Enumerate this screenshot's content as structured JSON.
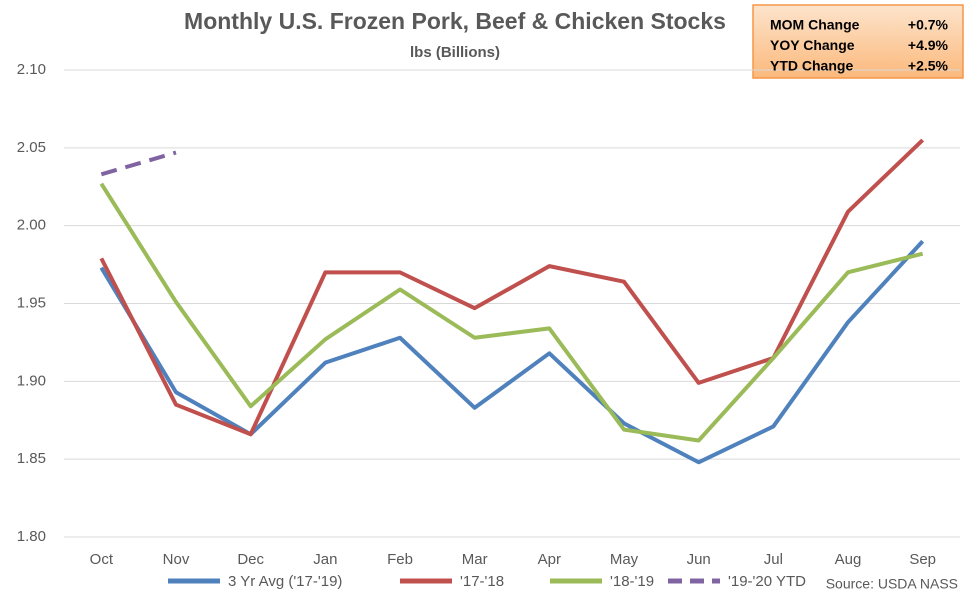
{
  "chart_data": {
    "type": "line",
    "title": "Monthly U.S. Frozen Pork, Beef & Chicken Stocks",
    "subtitle": "lbs (Billions)",
    "source": "Source: USDA NASS",
    "categories": [
      "Oct",
      "Nov",
      "Dec",
      "Jan",
      "Feb",
      "Mar",
      "Apr",
      "May",
      "Jun",
      "Jul",
      "Aug",
      "Sep"
    ],
    "series": [
      {
        "name": "3 Yr Avg ('17-'19)",
        "color": "#4f81bd",
        "values": [
          1.973,
          1.893,
          1.866,
          1.912,
          1.928,
          1.883,
          1.918,
          1.873,
          1.848,
          1.871,
          1.938,
          1.99
        ]
      },
      {
        "name": "'17-'18",
        "color": "#c0504d",
        "values": [
          1.979,
          1.885,
          1.866,
          1.97,
          1.97,
          1.947,
          1.974,
          1.964,
          1.899,
          1.915,
          2.009,
          2.055
        ]
      },
      {
        "name": "'18-'19",
        "color": "#9bbb59",
        "values": [
          2.027,
          1.951,
          1.884,
          1.927,
          1.959,
          1.928,
          1.934,
          1.869,
          1.862,
          1.915,
          1.97,
          1.982
        ]
      },
      {
        "name": "'19-'20 YTD",
        "color": "#8064a2",
        "dashed": true,
        "values": [
          2.033,
          2.047,
          null,
          null,
          null,
          null,
          null,
          null,
          null,
          null,
          null,
          null
        ]
      }
    ],
    "ylim": [
      1.8,
      2.1
    ],
    "yticks": [
      {
        "value": 1.8,
        "label": "1.80"
      },
      {
        "value": 1.85,
        "label": "1.85"
      },
      {
        "value": 1.9,
        "label": "1.90"
      },
      {
        "value": 1.95,
        "label": "1.95"
      },
      {
        "value": 2.0,
        "label": "2.00"
      },
      {
        "value": 2.05,
        "label": "2.05"
      },
      {
        "value": 2.1,
        "label": "2.10"
      }
    ],
    "grid": true,
    "legend": "bottom",
    "stats": [
      {
        "name": "MOM Change",
        "value": 0.7,
        "value_label": "+0.7%"
      },
      {
        "name": "YOY Change",
        "value": 4.9,
        "value_label": "+4.9%"
      },
      {
        "name": "YTD Change",
        "value": 2.5,
        "value_label": "+2.5%"
      }
    ]
  }
}
